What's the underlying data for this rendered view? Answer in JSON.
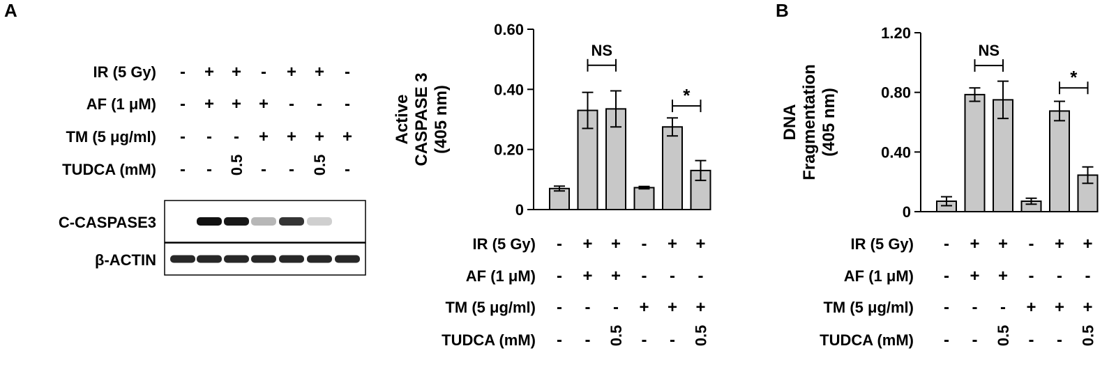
{
  "panel_labels": [
    "A",
    "B"
  ],
  "conditions": {
    "rows": [
      "IR (5 Gy)",
      "AF (1 μM)",
      "TM (5 μg/ml)",
      "TUDCA (mM)"
    ],
    "blot_lanes": [
      [
        "-",
        "+",
        "+",
        "-",
        "+",
        "+",
        "-"
      ],
      [
        "-",
        "+",
        "+",
        "+",
        "-",
        "-",
        "-"
      ],
      [
        "-",
        "-",
        "-",
        "+",
        "+",
        "+",
        "+"
      ],
      [
        "-",
        "-",
        "0.5",
        "-",
        "-",
        "0.5",
        "-"
      ]
    ],
    "chart_lanes": [
      [
        "-",
        "+",
        "+",
        "-",
        "+",
        "+"
      ],
      [
        "-",
        "+",
        "+",
        "-",
        "-",
        "-"
      ],
      [
        "-",
        "-",
        "-",
        "+",
        "+",
        "+"
      ],
      [
        "-",
        "-",
        "0.5",
        "-",
        "-",
        "0.5"
      ]
    ]
  },
  "western_blot": {
    "rows": [
      {
        "label": "C-CASPASE3",
        "intensities": [
          0.0,
          1.0,
          0.97,
          0.3,
          0.85,
          0.2,
          0.0
        ]
      },
      {
        "label": "β-ACTIN",
        "intensities": [
          0.9,
          0.9,
          0.9,
          0.9,
          0.9,
          0.9,
          0.9
        ]
      }
    ]
  },
  "colors": {
    "bar_fill": "#c8c8c8",
    "stroke": "#000000",
    "band": "#111111"
  },
  "chart_data": [
    {
      "type": "bar",
      "panel": "A",
      "ylabel_lines": [
        "Active",
        "CASPASE 3",
        "(405 nm)"
      ],
      "ylim": [
        0,
        0.6
      ],
      "yticks": [
        0,
        0.2,
        0.4,
        0.6
      ],
      "ytick_labels": [
        "0",
        "0.20",
        "0.40",
        "0.60"
      ],
      "values": [
        0.07,
        0.33,
        0.335,
        0.073,
        0.275,
        0.13
      ],
      "errors": [
        0.008,
        0.06,
        0.06,
        0.004,
        0.03,
        0.033
      ],
      "significance": [
        {
          "bars": [
            1,
            2
          ],
          "label": "NS",
          "y": 0.48
        },
        {
          "bars": [
            4,
            5
          ],
          "label": "*",
          "y": 0.345
        }
      ]
    },
    {
      "type": "bar",
      "panel": "B",
      "ylabel_lines": [
        "DNA",
        "Fragmentation",
        "(405 nm)"
      ],
      "ylim": [
        0,
        1.2
      ],
      "yticks": [
        0,
        0.4,
        0.8,
        1.2
      ],
      "ytick_labels": [
        "0",
        "0.40",
        "0.80",
        "1.20"
      ],
      "values": [
        0.07,
        0.785,
        0.75,
        0.07,
        0.675,
        0.245
      ],
      "errors": [
        0.03,
        0.045,
        0.125,
        0.02,
        0.065,
        0.055
      ],
      "significance": [
        {
          "bars": [
            1,
            2
          ],
          "label": "NS",
          "y": 0.98
        },
        {
          "bars": [
            4,
            5
          ],
          "label": "*",
          "y": 0.83
        }
      ]
    }
  ]
}
